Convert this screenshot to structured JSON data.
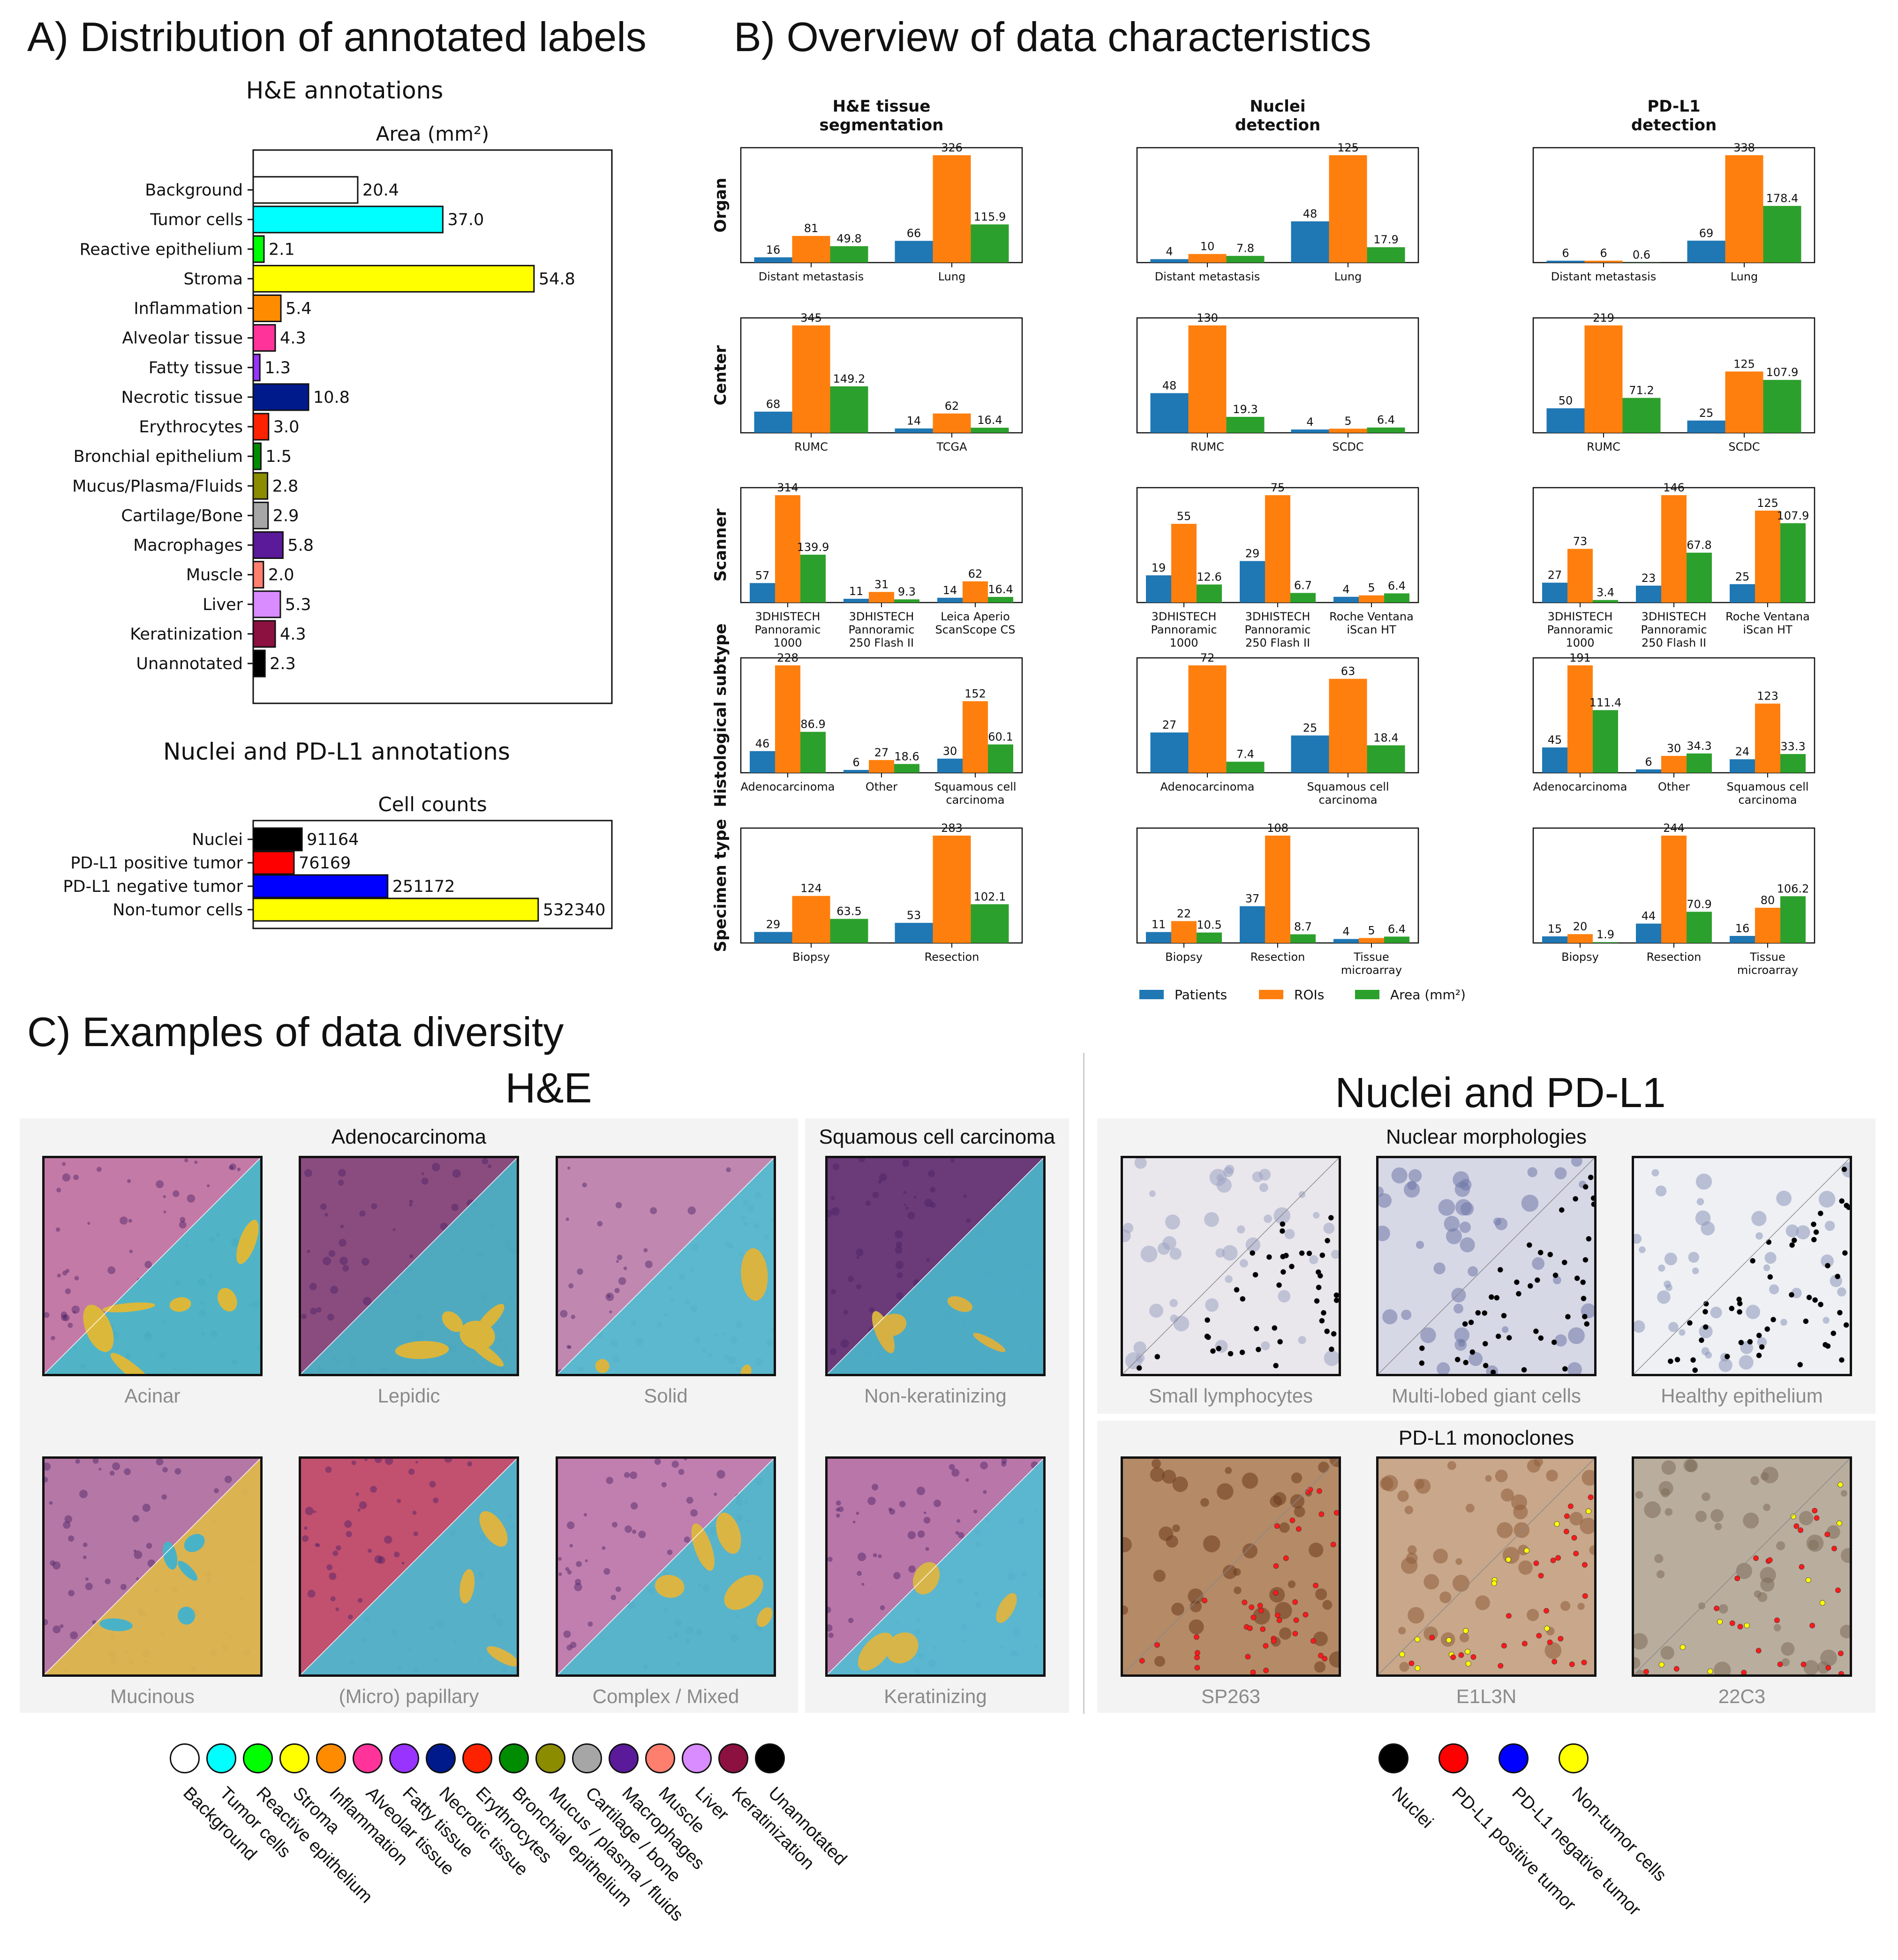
{
  "panelA": {
    "title": "A) Distribution of annotated labels",
    "he_title": "H&E annotations",
    "nuclei_title": "Nuclei and PD-L1 annotations"
  },
  "panelB": {
    "title": "B) Overview of data characteristics"
  },
  "panelC": {
    "title": "C) Examples of data diversity",
    "he_header": "H&E",
    "np_header": "Nuclei and PD-L1",
    "adeno_header": "Adenocarcinoma",
    "squamous_header": "Squamous cell carcinoma",
    "nuclear_header": "Nuclear morphologies",
    "pdl1_header": "PD-L1 monoclones",
    "he_tiles": [
      {
        "caption": "Acinar",
        "base": "#c47aa6",
        "overlay": "#45b8c9",
        "accent": "#dcb83a"
      },
      {
        "caption": "Lepidic",
        "base": "#8a4c7e",
        "overlay": "#4ab2c4",
        "accent": "#d9b53c"
      },
      {
        "caption": "Solid",
        "base": "#c088b0",
        "overlay": "#52bcd0",
        "accent": "#dab441"
      },
      {
        "caption": "Non-keratinizing",
        "base": "#6b3a78",
        "overlay": "#4bb5cb",
        "accent": "#d6b043"
      },
      {
        "caption": "Mucinous",
        "base": "#b577a5",
        "overlay": "#dfb94a",
        "accent": "#4ab2c6"
      },
      {
        "caption": "(Micro) papillary",
        "base": "#c2506f",
        "overlay": "#4db9cf",
        "accent": "#dbb443"
      },
      {
        "caption": "Complex / Mixed",
        "base": "#c07fae",
        "overlay": "#4fb9cd",
        "accent": "#dab544"
      },
      {
        "caption": "Keratinizing",
        "base": "#b976a8",
        "overlay": "#52bcd2",
        "accent": "#d7b548"
      }
    ],
    "np_tiles": [
      {
        "caption": "Small lymphocytes",
        "base": "#e9e6ec",
        "cell": "#9da2c2",
        "dots": "#000000",
        "dots2": "#000000"
      },
      {
        "caption": "Multi-lobed giant cells",
        "base": "#d7d8e6",
        "cell": "#6f78a8",
        "dots": "#000000",
        "dots2": "#000000"
      },
      {
        "caption": "Healthy epithelium",
        "base": "#eef0f4",
        "cell": "#8c97ba",
        "dots": "#000000",
        "dots2": "#000000"
      },
      {
        "caption": "SP263",
        "base": "#b58a66",
        "cell": "#6b3b1e",
        "dots": "#ff1a1a",
        "dots2": "#ff1a1a"
      },
      {
        "caption": "E1L3N",
        "base": "#c8a78a",
        "cell": "#8e5c3b",
        "dots": "#ff1a1a",
        "dots2": "#ffff00"
      },
      {
        "caption": "22C3",
        "base": "#b9ad9e",
        "cell": "#7d6b5a",
        "dots": "#ff1a1a",
        "dots2": "#ffff00"
      }
    ],
    "he_legend": [
      {
        "label": "Background",
        "color": "#ffffff"
      },
      {
        "label": "Tumor cells",
        "color": "#00ffff"
      },
      {
        "label": "Reactive epithelium",
        "color": "#00ff00"
      },
      {
        "label": "Stroma",
        "color": "#ffff00"
      },
      {
        "label": "Inflammation",
        "color": "#ff8c00"
      },
      {
        "label": "Alveolar tissue",
        "color": "#ff3399"
      },
      {
        "label": "Fatty tissue",
        "color": "#9933ff"
      },
      {
        "label": "Necrotic tissue",
        "color": "#001a8c"
      },
      {
        "label": "Erythrocytes",
        "color": "#ff2200"
      },
      {
        "label": "Bronchial epithelium",
        "color": "#008c00"
      },
      {
        "label": "Mucus / plasma / fluids",
        "color": "#8c8c00"
      },
      {
        "label": "Cartilage / bone",
        "color": "#a6a6a6"
      },
      {
        "label": "Macrophages",
        "color": "#5a1a99"
      },
      {
        "label": "Muscle",
        "color": "#ff7f6f"
      },
      {
        "label": "Liver",
        "color": "#d98cff"
      },
      {
        "label": "Keratinization",
        "color": "#8c1040"
      },
      {
        "label": "Unannotated",
        "color": "#000000"
      }
    ],
    "np_legend": [
      {
        "label": "Nuclei",
        "color": "#000000"
      },
      {
        "label": "PD-L1 positive tumor",
        "color": "#ff0000"
      },
      {
        "label": "PD-L1 negative tumor",
        "color": "#0000ff"
      },
      {
        "label": "Non-tumor cells",
        "color": "#ffff00"
      }
    ]
  },
  "chart_data": [
    {
      "type": "bar",
      "orientation": "horizontal",
      "title": "Area (mm²)",
      "categories": [
        "Background",
        "Tumor cells",
        "Reactive epithelium",
        "Stroma",
        "Inflammation",
        "Alveolar tissue",
        "Fatty tissue",
        "Necrotic tissue",
        "Erythrocytes",
        "Bronchial epithelium",
        "Mucus/Plasma/Fluids",
        "Cartilage/Bone",
        "Macrophages",
        "Muscle",
        "Liver",
        "Keratinization",
        "Unannotated"
      ],
      "values": [
        20.4,
        37.0,
        2.1,
        54.8,
        5.4,
        4.3,
        1.3,
        10.8,
        3.0,
        1.5,
        2.8,
        2.9,
        5.8,
        2.0,
        5.3,
        4.3,
        2.3
      ],
      "value_labels": [
        "20.4",
        "37.0",
        "2.1",
        "54.8",
        "5.4",
        "4.3",
        "1.3",
        "10.8",
        "3.0",
        "1.5",
        "2.8",
        "2.9",
        "5.8",
        "2.0",
        "5.3",
        "4.3",
        "2.3"
      ],
      "colors": [
        "#ffffff",
        "#00ffff",
        "#00ff00",
        "#ffff00",
        "#ff8c00",
        "#ff3399",
        "#9933ff",
        "#001a8c",
        "#ff2200",
        "#008c00",
        "#8c8c00",
        "#a6a6a6",
        "#5a1a99",
        "#ff7f6f",
        "#d98cff",
        "#8c1040",
        "#000000"
      ],
      "xlim": [
        0,
        70
      ]
    },
    {
      "type": "bar",
      "orientation": "horizontal",
      "title": "Cell counts",
      "categories": [
        "Nuclei",
        "PD-L1 positive tumor",
        "PD-L1 negative tumor",
        "Non-tumor cells"
      ],
      "values": [
        91164,
        76169,
        251172,
        532340
      ],
      "value_labels": [
        "91164",
        "76169",
        "251172",
        "532340"
      ],
      "colors": [
        "#000000",
        "#ff0000",
        "#0000ff",
        "#ffff00"
      ],
      "xlim": [
        0,
        670000
      ]
    },
    {
      "type": "bar",
      "title": "Overview of data characteristics",
      "column_titles": [
        "H&E tissue\nsegmentation",
        "Nuclei\ndetection",
        "PD-L1\ndetection"
      ],
      "row_titles": [
        "Organ",
        "Center",
        "Scanner",
        "Histological subtype",
        "Specimen type"
      ],
      "series_names": [
        "Patients",
        "ROIs",
        "Area (mm²)"
      ],
      "series_colors": [
        "#1f77b4",
        "#ff7f0e",
        "#2ca02c"
      ],
      "panels": [
        {
          "row": 0,
          "col": 0,
          "categories": [
            "Distant metastasis",
            "Lung"
          ],
          "series": [
            [
              16,
              66
            ],
            [
              81,
              326
            ],
            [
              49.8,
              115.9
            ]
          ],
          "labels": [
            [
              "16",
              "66"
            ],
            [
              "81",
              "326"
            ],
            [
              "49.8",
              "115.9"
            ]
          ]
        },
        {
          "row": 0,
          "col": 1,
          "categories": [
            "Distant metastasis",
            "Lung"
          ],
          "series": [
            [
              4,
              48
            ],
            [
              10,
              125
            ],
            [
              7.8,
              17.9
            ]
          ],
          "labels": [
            [
              "4",
              "48"
            ],
            [
              "10",
              "125"
            ],
            [
              "7.8",
              "17.9"
            ]
          ]
        },
        {
          "row": 0,
          "col": 2,
          "categories": [
            "Distant metastasis",
            "Lung"
          ],
          "series": [
            [
              6,
              69
            ],
            [
              6,
              338
            ],
            [
              0.6,
              178.4
            ]
          ],
          "labels": [
            [
              "6",
              "69"
            ],
            [
              "6",
              "338"
            ],
            [
              "0.6",
              "178.4"
            ]
          ]
        },
        {
          "row": 1,
          "col": 0,
          "categories": [
            "RUMC",
            "TCGA"
          ],
          "series": [
            [
              68,
              14
            ],
            [
              345,
              62
            ],
            [
              149.2,
              16.4
            ]
          ],
          "labels": [
            [
              "68",
              "14"
            ],
            [
              "345",
              "62"
            ],
            [
              "149.2",
              "16.4"
            ]
          ]
        },
        {
          "row": 1,
          "col": 1,
          "categories": [
            "RUMC",
            "SCDC"
          ],
          "series": [
            [
              48,
              4
            ],
            [
              130,
              5
            ],
            [
              19.3,
              6.4
            ]
          ],
          "labels": [
            [
              "48",
              "4"
            ],
            [
              "130",
              "5"
            ],
            [
              "19.3",
              "6.4"
            ]
          ]
        },
        {
          "row": 1,
          "col": 2,
          "categories": [
            "RUMC",
            "SCDC"
          ],
          "series": [
            [
              50,
              25
            ],
            [
              219,
              125
            ],
            [
              71.2,
              107.9
            ]
          ],
          "labels": [
            [
              "50",
              "25"
            ],
            [
              "219",
              "125"
            ],
            [
              "71.2",
              "107.9"
            ]
          ]
        },
        {
          "row": 2,
          "col": 0,
          "categories": [
            "3DHISTECH\nPannoramic\n1000",
            "3DHISTECH\nPannoramic\n250 Flash II",
            "Leica Aperio\nScanScope CS"
          ],
          "series": [
            [
              57,
              11,
              14
            ],
            [
              314,
              31,
              62
            ],
            [
              139.9,
              9.3,
              16.4
            ]
          ],
          "labels": [
            [
              "57",
              "11",
              "14"
            ],
            [
              "314",
              "31",
              "62"
            ],
            [
              "139.9",
              "9.3",
              "16.4"
            ]
          ]
        },
        {
          "row": 2,
          "col": 1,
          "categories": [
            "3DHISTECH\nPannoramic\n1000",
            "3DHISTECH\nPannoramic\n250 Flash II",
            "Roche Ventana\niScan HT"
          ],
          "series": [
            [
              19,
              29,
              4
            ],
            [
              55,
              75,
              5
            ],
            [
              12.6,
              6.7,
              6.4
            ]
          ],
          "labels": [
            [
              "19",
              "29",
              "4"
            ],
            [
              "55",
              "75",
              "5"
            ],
            [
              "12.6",
              "6.7",
              "6.4"
            ]
          ]
        },
        {
          "row": 2,
          "col": 2,
          "categories": [
            "3DHISTECH\nPannoramic\n1000",
            "3DHISTECH\nPannoramic\n250 Flash II",
            "Roche Ventana\niScan HT"
          ],
          "series": [
            [
              27,
              23,
              25
            ],
            [
              73,
              146,
              125
            ],
            [
              3.4,
              67.8,
              107.9
            ]
          ],
          "labels": [
            [
              "27",
              "23",
              "25"
            ],
            [
              "73",
              "146",
              "125"
            ],
            [
              "3.4",
              "67.8",
              "107.9"
            ]
          ]
        },
        {
          "row": 3,
          "col": 0,
          "categories": [
            "Adenocarcinoma",
            "Other",
            "Squamous cell\ncarcinoma"
          ],
          "series": [
            [
              46,
              6,
              30
            ],
            [
              228,
              27,
              152
            ],
            [
              86.9,
              18.6,
              60.1
            ]
          ],
          "labels": [
            [
              "46",
              "6",
              "30"
            ],
            [
              "228",
              "27",
              "152"
            ],
            [
              "86.9",
              "18.6",
              "60.1"
            ]
          ]
        },
        {
          "row": 3,
          "col": 1,
          "categories": [
            "Adenocarcinoma",
            "Squamous cell\ncarcinoma"
          ],
          "series": [
            [
              27,
              25
            ],
            [
              72,
              63
            ],
            [
              7.4,
              18.4
            ]
          ],
          "labels": [
            [
              "27",
              "25"
            ],
            [
              "72",
              "63"
            ],
            [
              "7.4",
              "18.4"
            ]
          ]
        },
        {
          "row": 3,
          "col": 2,
          "categories": [
            "Adenocarcinoma",
            "Other",
            "Squamous cell\ncarcinoma"
          ],
          "series": [
            [
              45,
              6,
              24
            ],
            [
              191,
              30,
              123
            ],
            [
              111.4,
              34.3,
              33.3
            ]
          ],
          "labels": [
            [
              "45",
              "6",
              "24"
            ],
            [
              "191",
              "30",
              "123"
            ],
            [
              "111.4",
              "34.3",
              "33.3"
            ]
          ]
        },
        {
          "row": 4,
          "col": 0,
          "categories": [
            "Biopsy",
            "Resection"
          ],
          "series": [
            [
              29,
              53
            ],
            [
              124,
              283
            ],
            [
              63.5,
              102.1
            ]
          ],
          "labels": [
            [
              "29",
              "53"
            ],
            [
              "124",
              "283"
            ],
            [
              "63.5",
              "102.1"
            ]
          ]
        },
        {
          "row": 4,
          "col": 1,
          "categories": [
            "Biopsy",
            "Resection",
            "Tissue\nmicroarray"
          ],
          "series": [
            [
              11,
              37,
              4
            ],
            [
              22,
              108,
              5
            ],
            [
              10.5,
              8.7,
              6.4
            ]
          ],
          "labels": [
            [
              "11",
              "37",
              "4"
            ],
            [
              "22",
              "108",
              "5"
            ],
            [
              "10.5",
              "8.7",
              "6.4"
            ]
          ]
        },
        {
          "row": 4,
          "col": 2,
          "categories": [
            "Biopsy",
            "Resection",
            "Tissue\nmicroarray"
          ],
          "series": [
            [
              15,
              44,
              16
            ],
            [
              20,
              244,
              80
            ],
            [
              1.9,
              70.9,
              106.2
            ]
          ],
          "labels": [
            [
              "15",
              "44",
              "16"
            ],
            [
              "20",
              "244",
              "80"
            ],
            [
              "1.9",
              "70.9",
              "106.2"
            ]
          ]
        }
      ]
    }
  ]
}
